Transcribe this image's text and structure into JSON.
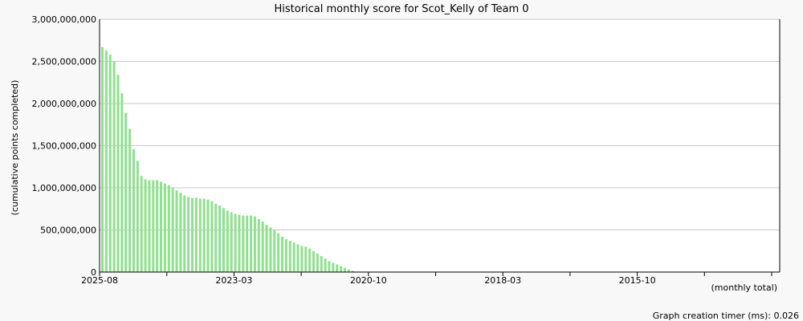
{
  "chart_data": {
    "type": "bar",
    "title": "Historical monthly score for Scot_Kelly of Team 0",
    "ylabel": "(cumulative points completed)",
    "xlabel_note": "(monthly total)",
    "footer": "Graph creation timer (ms): 0.026",
    "ylim": [
      0,
      3000000000
    ],
    "y_ticks": [
      "0",
      "500,000,000",
      "1,000,000,000",
      "1,500,000,000",
      "2,000,000,000",
      "2,500,000,000",
      "3,000,000,000"
    ],
    "x_ticks": [
      "2025-08",
      "2023-03",
      "2020-10",
      "2018-03",
      "2015-10"
    ],
    "x_order": "newest-first",
    "bar_color": "#90e090",
    "grid": true,
    "series": [
      {
        "values": [
          2670000000,
          2630000000,
          2580000000,
          2500000000,
          2340000000,
          2120000000,
          1890000000,
          1700000000,
          1460000000,
          1320000000,
          1140000000,
          1100000000,
          1090000000,
          1090000000,
          1090000000,
          1070000000,
          1050000000,
          1030000000,
          1000000000,
          970000000,
          940000000,
          910000000,
          890000000,
          880000000,
          880000000,
          870000000,
          870000000,
          860000000,
          840000000,
          810000000,
          790000000,
          760000000,
          730000000,
          710000000,
          690000000,
          680000000,
          670000000,
          670000000,
          670000000,
          660000000,
          630000000,
          600000000,
          560000000,
          530000000,
          500000000,
          460000000,
          420000000,
          390000000,
          370000000,
          350000000,
          330000000,
          310000000,
          300000000,
          280000000,
          250000000,
          220000000,
          190000000,
          160000000,
          130000000,
          110000000,
          90000000,
          70000000,
          50000000,
          30000000,
          15000000
        ]
      }
    ]
  }
}
